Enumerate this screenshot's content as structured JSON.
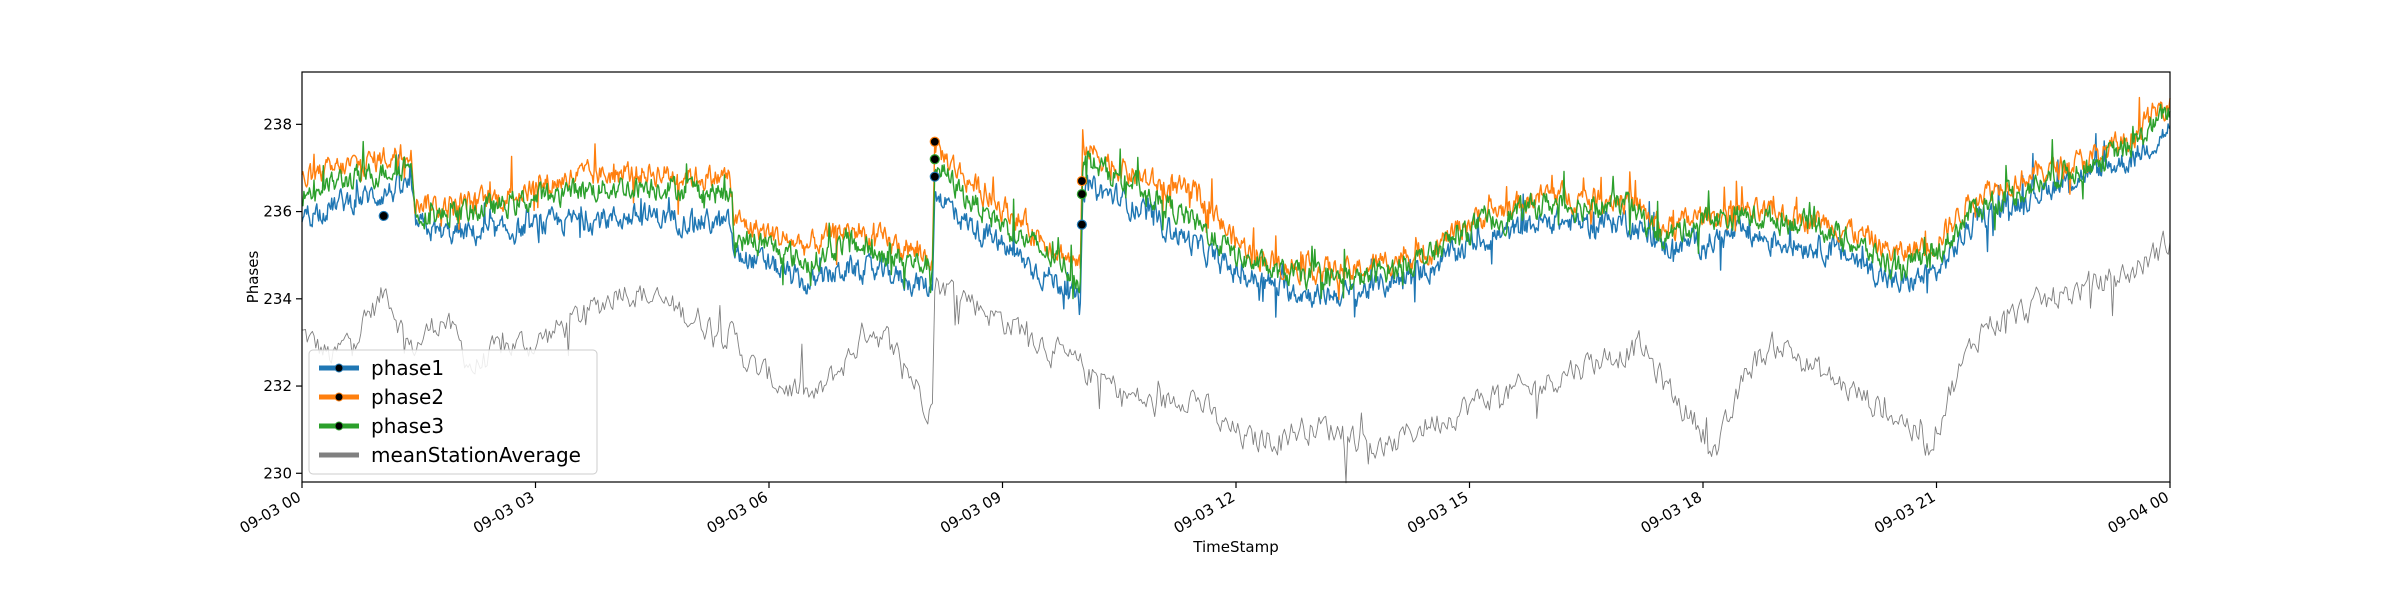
{
  "chart_data": {
    "type": "line",
    "title": "",
    "xlabel": "TimeStamp",
    "ylabel": "Phases",
    "xlim": [
      "09-03 00:00",
      "09-04 00:00"
    ],
    "ylim": [
      229.8,
      239.2
    ],
    "x_ticks": [
      "09-03 00",
      "09-03 03",
      "09-03 06",
      "09-03 09",
      "09-03 12",
      "09-03 15",
      "09-03 18",
      "09-03 21",
      "09-04 00"
    ],
    "y_ticks": [
      230,
      232,
      234,
      236,
      238
    ],
    "grid": false,
    "legend_position": "bottom-left",
    "x_unit": "hours since 09-03 00:00",
    "series": [
      {
        "name": "phase1",
        "color": "#1f77b4",
        "points": [
          [
            0,
            235.9
          ],
          [
            0.5,
            236.2
          ],
          [
            1.0,
            236.4
          ],
          [
            1.4,
            236.6
          ],
          [
            1.45,
            235.7
          ],
          [
            1.8,
            235.5
          ],
          [
            2.5,
            235.5
          ],
          [
            3.5,
            235.8
          ],
          [
            4.5,
            235.9
          ],
          [
            5.0,
            235.8
          ],
          [
            5.5,
            235.7
          ],
          [
            5.55,
            235.0
          ],
          [
            6.0,
            234.8
          ],
          [
            6.5,
            234.3
          ],
          [
            7.0,
            234.7
          ],
          [
            7.5,
            234.6
          ],
          [
            8.0,
            234.3
          ],
          [
            8.1,
            234.2
          ],
          [
            8.13,
            236.5
          ],
          [
            8.5,
            235.8
          ],
          [
            9.0,
            235.2
          ],
          [
            9.5,
            234.6
          ],
          [
            9.8,
            234.3
          ],
          [
            10.0,
            233.9
          ],
          [
            10.03,
            236.6
          ],
          [
            10.5,
            236.3
          ],
          [
            11.0,
            235.8
          ],
          [
            11.5,
            235.2
          ],
          [
            12.0,
            234.6
          ],
          [
            12.5,
            234.3
          ],
          [
            13.0,
            234.1
          ],
          [
            13.5,
            234.1
          ],
          [
            14.0,
            234.4
          ],
          [
            14.5,
            234.7
          ],
          [
            15.0,
            235.3
          ],
          [
            15.5,
            235.5
          ],
          [
            16.0,
            235.8
          ],
          [
            16.5,
            235.7
          ],
          [
            17.0,
            235.8
          ],
          [
            17.5,
            235.2
          ],
          [
            18.0,
            235.3
          ],
          [
            18.5,
            235.5
          ],
          [
            19.0,
            235.3
          ],
          [
            19.5,
            235.2
          ],
          [
            20.0,
            234.9
          ],
          [
            20.5,
            234.3
          ],
          [
            21.0,
            234.6
          ],
          [
            21.5,
            235.8
          ],
          [
            22.0,
            236.2
          ],
          [
            22.5,
            236.6
          ],
          [
            23.0,
            236.9
          ],
          [
            23.5,
            237.2
          ],
          [
            24.0,
            237.9
          ]
        ]
      },
      {
        "name": "phase2",
        "color": "#ff7f0e",
        "points": [
          [
            0,
            236.7
          ],
          [
            0.5,
            237.0
          ],
          [
            1.0,
            237.2
          ],
          [
            1.4,
            237.4
          ],
          [
            1.45,
            236.3
          ],
          [
            1.8,
            236.1
          ],
          [
            2.5,
            236.3
          ],
          [
            3.5,
            236.8
          ],
          [
            4.5,
            236.9
          ],
          [
            5.0,
            236.8
          ],
          [
            5.5,
            236.8
          ],
          [
            5.55,
            235.8
          ],
          [
            6.0,
            235.5
          ],
          [
            6.5,
            235.2
          ],
          [
            7.0,
            235.6
          ],
          [
            7.5,
            235.3
          ],
          [
            8.0,
            235.0
          ],
          [
            8.1,
            234.9
          ],
          [
            8.13,
            237.5
          ],
          [
            8.5,
            236.8
          ],
          [
            9.0,
            236.1
          ],
          [
            9.5,
            235.4
          ],
          [
            9.8,
            235.0
          ],
          [
            10.0,
            234.7
          ],
          [
            10.03,
            237.5
          ],
          [
            10.5,
            237.0
          ],
          [
            11.0,
            236.6
          ],
          [
            11.5,
            236.4
          ],
          [
            12.0,
            235.3
          ],
          [
            12.5,
            234.8
          ],
          [
            13.0,
            234.7
          ],
          [
            13.5,
            234.6
          ],
          [
            14.0,
            234.9
          ],
          [
            14.5,
            235.1
          ],
          [
            15.0,
            235.8
          ],
          [
            15.5,
            236.1
          ],
          [
            16.0,
            236.4
          ],
          [
            16.5,
            236.3
          ],
          [
            17.0,
            236.3
          ],
          [
            17.5,
            235.6
          ],
          [
            18.0,
            235.9
          ],
          [
            18.5,
            236.0
          ],
          [
            19.0,
            235.9
          ],
          [
            19.5,
            235.8
          ],
          [
            20.0,
            235.5
          ],
          [
            20.5,
            235.0
          ],
          [
            21.0,
            235.3
          ],
          [
            21.5,
            236.4
          ],
          [
            22.0,
            236.7
          ],
          [
            22.5,
            237.0
          ],
          [
            23.0,
            237.2
          ],
          [
            23.5,
            237.7
          ],
          [
            24.0,
            238.6
          ]
        ]
      },
      {
        "name": "phase3",
        "color": "#2ca02c",
        "points": [
          [
            0,
            236.4
          ],
          [
            0.5,
            236.7
          ],
          [
            1.0,
            236.9
          ],
          [
            1.4,
            237.1
          ],
          [
            1.45,
            236.0
          ],
          [
            1.8,
            235.9
          ],
          [
            2.5,
            236.1
          ],
          [
            3.5,
            236.5
          ],
          [
            4.5,
            236.6
          ],
          [
            5.0,
            236.5
          ],
          [
            5.5,
            236.4
          ],
          [
            5.55,
            235.4
          ],
          [
            6.0,
            235.2
          ],
          [
            6.5,
            234.8
          ],
          [
            7.0,
            235.3
          ],
          [
            7.5,
            235.0
          ],
          [
            8.0,
            234.8
          ],
          [
            8.1,
            234.7
          ],
          [
            8.13,
            237.1
          ],
          [
            8.5,
            236.4
          ],
          [
            9.0,
            235.7
          ],
          [
            9.5,
            235.1
          ],
          [
            9.8,
            234.8
          ],
          [
            10.0,
            234.4
          ],
          [
            10.03,
            237.2
          ],
          [
            10.5,
            236.8
          ],
          [
            11.0,
            236.3
          ],
          [
            11.5,
            235.7
          ],
          [
            12.0,
            235.0
          ],
          [
            12.5,
            234.6
          ],
          [
            13.0,
            234.5
          ],
          [
            13.5,
            234.4
          ],
          [
            14.0,
            234.7
          ],
          [
            14.5,
            235.0
          ],
          [
            15.0,
            235.6
          ],
          [
            15.5,
            235.9
          ],
          [
            16.0,
            236.2
          ],
          [
            16.5,
            236.1
          ],
          [
            17.0,
            236.2
          ],
          [
            17.5,
            235.4
          ],
          [
            18.0,
            235.8
          ],
          [
            18.5,
            235.9
          ],
          [
            19.0,
            235.8
          ],
          [
            19.5,
            235.7
          ],
          [
            20.0,
            235.2
          ],
          [
            20.5,
            234.7
          ],
          [
            21.0,
            235.0
          ],
          [
            21.5,
            236.1
          ],
          [
            22.0,
            236.4
          ],
          [
            22.5,
            236.8
          ],
          [
            23.0,
            237.1
          ],
          [
            23.5,
            237.5
          ],
          [
            24.0,
            238.3
          ]
        ]
      },
      {
        "name": "meanStationAverage",
        "color": "#808080",
        "points": [
          [
            0,
            233.2
          ],
          [
            0.4,
            232.6
          ],
          [
            0.8,
            233.5
          ],
          [
            1.1,
            234.2
          ],
          [
            1.4,
            232.8
          ],
          [
            1.8,
            233.6
          ],
          [
            2.2,
            232.4
          ],
          [
            2.6,
            232.9
          ],
          [
            3.0,
            233.0
          ],
          [
            3.4,
            233.4
          ],
          [
            3.8,
            233.8
          ],
          [
            4.1,
            234.3
          ],
          [
            4.5,
            234.0
          ],
          [
            5.0,
            233.6
          ],
          [
            5.5,
            233.2
          ],
          [
            5.8,
            232.4
          ],
          [
            6.2,
            232.0
          ],
          [
            6.6,
            231.7
          ],
          [
            7.0,
            232.6
          ],
          [
            7.3,
            233.4
          ],
          [
            7.6,
            232.9
          ],
          [
            8.0,
            231.7
          ],
          [
            8.1,
            231.6
          ],
          [
            8.13,
            234.4
          ],
          [
            8.5,
            234.1
          ],
          [
            9.0,
            233.5
          ],
          [
            9.4,
            233.2
          ],
          [
            9.8,
            232.6
          ],
          [
            10.2,
            232.2
          ],
          [
            10.6,
            231.8
          ],
          [
            11.0,
            231.5
          ],
          [
            11.4,
            231.9
          ],
          [
            11.8,
            231.1
          ],
          [
            12.2,
            230.7
          ],
          [
            12.6,
            230.9
          ],
          [
            13.0,
            231.1
          ],
          [
            13.5,
            230.9
          ],
          [
            13.9,
            230.5
          ],
          [
            14.3,
            231.0
          ],
          [
            14.8,
            231.4
          ],
          [
            15.3,
            231.8
          ],
          [
            15.8,
            231.9
          ],
          [
            16.3,
            232.4
          ],
          [
            16.8,
            232.7
          ],
          [
            17.2,
            232.9
          ],
          [
            17.6,
            231.8
          ],
          [
            18.0,
            231.0
          ],
          [
            18.2,
            230.5
          ],
          [
            18.6,
            232.5
          ],
          [
            19.0,
            233.0
          ],
          [
            19.4,
            232.4
          ],
          [
            19.8,
            232.0
          ],
          [
            20.2,
            231.6
          ],
          [
            20.6,
            231.2
          ],
          [
            20.9,
            230.6
          ],
          [
            21.2,
            232.0
          ],
          [
            21.6,
            233.4
          ],
          [
            22.0,
            233.6
          ],
          [
            22.5,
            234.0
          ],
          [
            23.0,
            234.3
          ],
          [
            23.5,
            234.6
          ],
          [
            24.0,
            235.3
          ]
        ]
      }
    ],
    "markers": [
      {
        "series": "phase1",
        "x": 1.05,
        "y": 235.9
      },
      {
        "series": "phase1",
        "x": 8.13,
        "y": 236.8
      },
      {
        "series": "phase1",
        "x": 10.02,
        "y": 235.7
      },
      {
        "series": "phase2",
        "x": 8.13,
        "y": 237.6
      },
      {
        "series": "phase2",
        "x": 10.02,
        "y": 236.7
      },
      {
        "series": "phase3",
        "x": 8.13,
        "y": 237.2
      },
      {
        "series": "phase3",
        "x": 10.02,
        "y": 236.4
      }
    ]
  }
}
